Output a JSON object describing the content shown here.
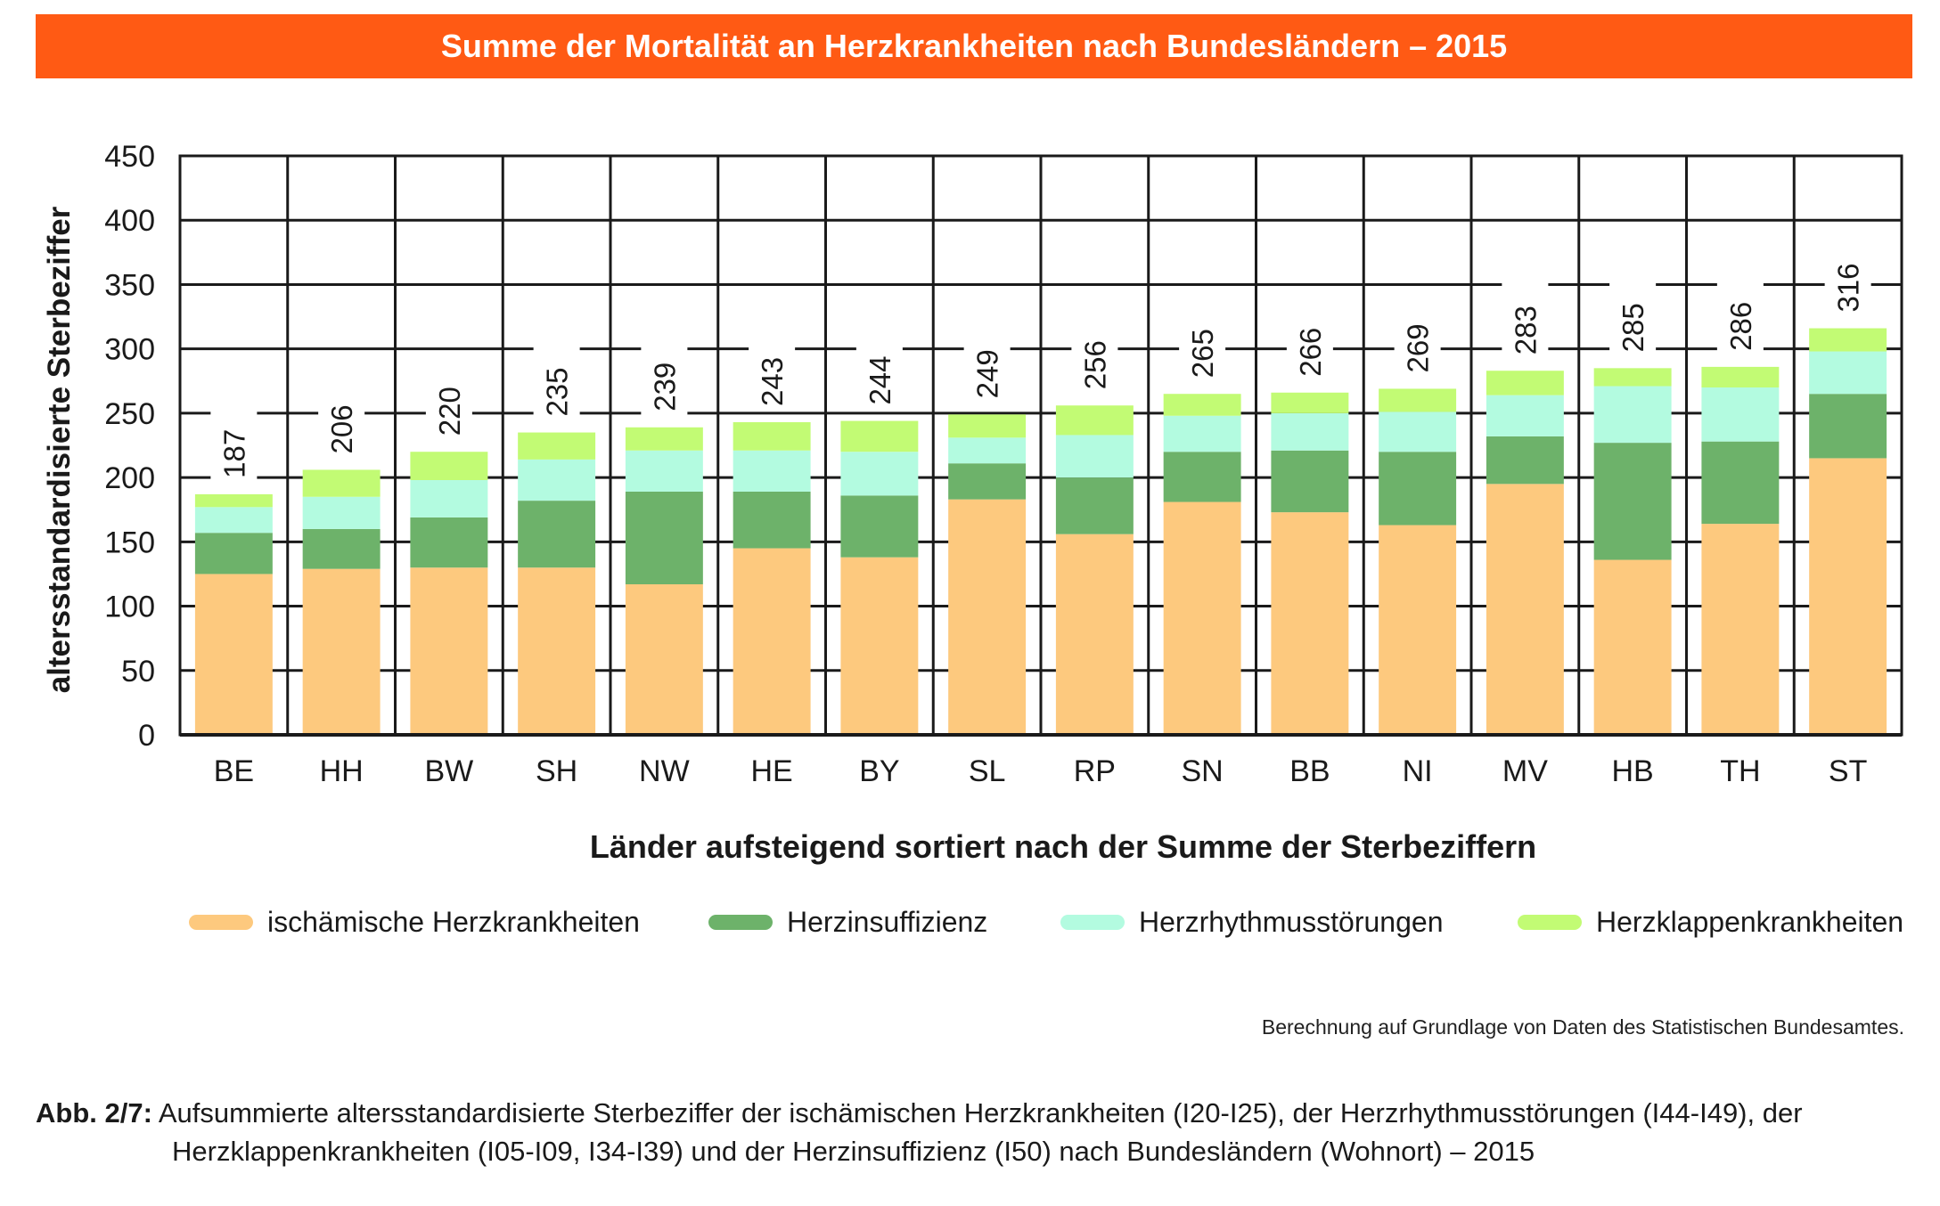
{
  "title": "Summe der Mortalität an Herzkrankheiten nach Bundesländern – 2015",
  "source": "Berechnung auf Grundlage von Daten des Statistischen Bundesamtes.",
  "caption": {
    "prefix": "Abb. 2/7:",
    "line1": "Aufsummierte altersstandardisierte Sterbeziffer der ischämischen Herzkrankheiten (I20-I25), der Herzrhythmusstörungen (I44-I49), der",
    "line2": "Herzklappenkrankheiten (I05-I09, I34-I39) und der Herzinsuffizienz (I50) nach Bundesländern (Wohnort) – 2015"
  },
  "legend": [
    {
      "label": "ischämische Herzkrankheiten",
      "color": "#fdc97e"
    },
    {
      "label": "Herzinsuffizienz",
      "color": "#6db26a"
    },
    {
      "label": "Herzrhythmusstörungen",
      "color": "#b3fbe0"
    },
    {
      "label": "Herzklappenkrankheiten",
      "color": "#c2fb74"
    }
  ],
  "chart_data": {
    "type": "bar",
    "stacked": true,
    "xlabel": "Länder aufsteigend sortiert nach der Summe der Sterbeziffern",
    "ylabel": "altersstandardisierte Sterbeziffer",
    "ylim": [
      0,
      450
    ],
    "yticks": [
      0,
      50,
      100,
      150,
      200,
      250,
      300,
      350,
      400,
      450
    ],
    "grid": true,
    "categories": [
      "BE",
      "HH",
      "BW",
      "SH",
      "NW",
      "HE",
      "BY",
      "SL",
      "RP",
      "SN",
      "BB",
      "NI",
      "MV",
      "HB",
      "TH",
      "ST"
    ],
    "totals": [
      187,
      206,
      220,
      235,
      239,
      243,
      244,
      249,
      256,
      265,
      266,
      269,
      283,
      285,
      286,
      316
    ],
    "series": [
      {
        "name": "ischämische Herzkrankheiten",
        "color": "#fdc97e",
        "values": [
          125,
          129,
          130,
          130,
          117,
          145,
          138,
          183,
          156,
          181,
          173,
          163,
          195,
          136,
          164,
          215
        ]
      },
      {
        "name": "Herzinsuffizienz",
        "color": "#6db26a",
        "values": [
          32,
          31,
          39,
          52,
          72,
          44,
          48,
          28,
          44,
          39,
          48,
          57,
          37,
          91,
          64,
          50
        ]
      },
      {
        "name": "Herzrhythmusstörungen",
        "color": "#b3fbe0",
        "values": [
          20,
          25,
          29,
          32,
          32,
          32,
          34,
          20,
          33,
          28,
          29,
          31,
          32,
          44,
          42,
          33
        ]
      },
      {
        "name": "Herzklappenkrankheiten",
        "color": "#c2fb74",
        "values": [
          10,
          21,
          22,
          21,
          18,
          22,
          24,
          18,
          23,
          17,
          16,
          18,
          19,
          14,
          16,
          18
        ]
      }
    ]
  }
}
